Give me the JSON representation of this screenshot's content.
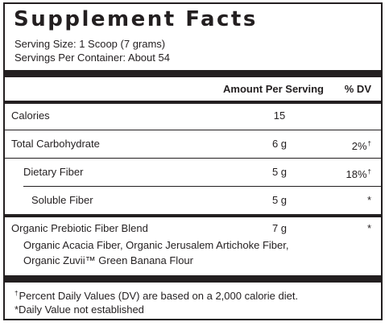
{
  "title": "Supplement Facts",
  "serving_size": "Serving Size: 1 Scoop (7 grams)",
  "servings_per_container": "Servings Per Container: About 54",
  "columns": {
    "amount": "Amount Per Serving",
    "dv": "% DV"
  },
  "rows": [
    {
      "name": "Calories",
      "amount": "15",
      "dv": "",
      "dv_mark": ""
    },
    {
      "name": "Total Carbohydrate",
      "amount": "6 g",
      "dv": "2%",
      "dv_mark": "†"
    },
    {
      "name": "Dietary Fiber",
      "amount": "5 g",
      "dv": "18%",
      "dv_mark": "†"
    },
    {
      "name": "Soluble Fiber",
      "amount": "5 g",
      "dv": "*",
      "dv_mark": ""
    },
    {
      "name": "Organic Prebiotic Fiber Blend",
      "amount": "7 g",
      "dv": "*",
      "dv_mark": "",
      "detail_line1": "Organic Acacia Fiber, Organic Jerusalem Artichoke Fiber,",
      "detail_line2": "Organic Zuvii™ Green Banana Flour"
    }
  ],
  "footnotes": {
    "percent_dv_mark": "†",
    "percent_dv": "Percent Daily Values (DV) are based on a 2,000 calorie diet.",
    "not_established": "*Daily Value not established"
  },
  "colors": {
    "ink": "#231f20",
    "background": "#ffffff"
  }
}
